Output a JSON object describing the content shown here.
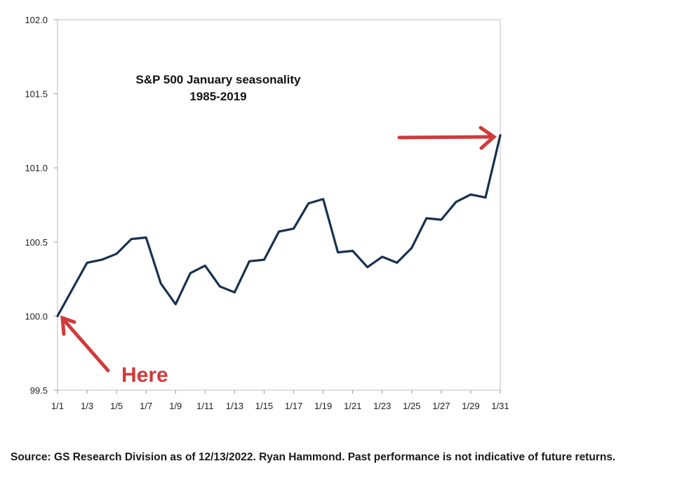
{
  "chart_data": {
    "type": "line",
    "title": "S&P 500 January seasonality",
    "subtitle": "1985-2019",
    "xlabel": "",
    "ylabel": "",
    "ylim": [
      99.5,
      102.0
    ],
    "yticks": [
      "99.5",
      "100.0",
      "100.5",
      "101.0",
      "101.5",
      "102.0"
    ],
    "yticks_values": [
      99.5,
      100.0,
      100.5,
      101.0,
      101.5,
      102.0
    ],
    "xticks": [
      "1/1",
      "1/3",
      "1/5",
      "1/7",
      "1/9",
      "1/11",
      "1/13",
      "1/15",
      "1/17",
      "1/19",
      "1/21",
      "1/23",
      "1/25",
      "1/27",
      "1/29",
      "1/31"
    ],
    "grid": false,
    "line_color": "#17324f",
    "annotation_color": "#d03a3a",
    "series": [
      {
        "name": "S&P 500 January seasonality",
        "x": [
          1,
          2,
          3,
          4,
          5,
          6,
          7,
          8,
          9,
          10,
          11,
          12,
          13,
          14,
          15,
          16,
          17,
          18,
          19,
          20,
          21,
          22,
          23,
          24,
          25,
          26,
          27,
          28,
          29,
          30,
          31
        ],
        "values": [
          100.0,
          100.18,
          100.36,
          100.38,
          100.42,
          100.52,
          100.53,
          100.22,
          100.08,
          100.29,
          100.34,
          100.2,
          100.16,
          100.37,
          100.38,
          100.57,
          100.59,
          100.76,
          100.79,
          100.43,
          100.44,
          100.33,
          100.4,
          100.36,
          100.46,
          100.66,
          100.65,
          100.77,
          100.82,
          100.8,
          101.22
        ]
      }
    ],
    "annotations": [
      {
        "text": "Here",
        "points_to": "start"
      },
      {
        "text": "",
        "points_to": "end"
      }
    ]
  },
  "footer": {
    "source": "Source: GS Research Division as of 12/13/2022. Ryan Hammond. Past performance is not indicative of future returns."
  }
}
